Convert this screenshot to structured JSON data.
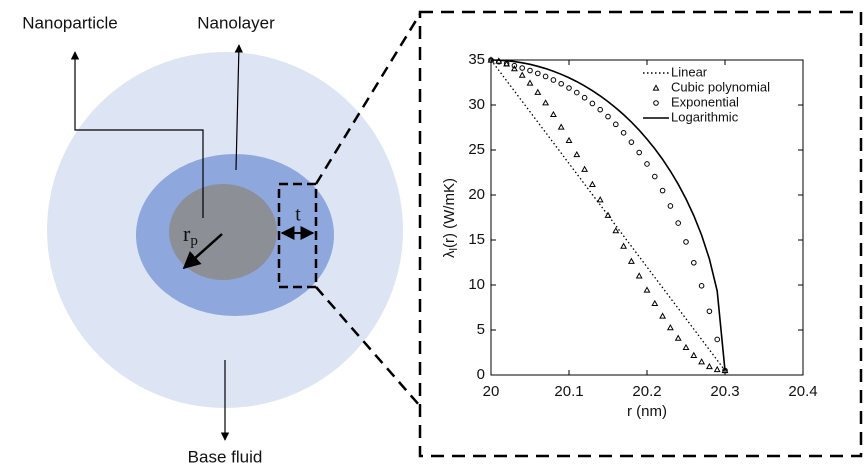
{
  "diagram": {
    "labels": {
      "nanoparticle": "Nanoparticle",
      "nanolayer": "Nanolayer",
      "base_fluid": "Base fluid",
      "radius": [
        "r",
        "p"
      ],
      "thickness": "t"
    }
  },
  "chart_data": {
    "type": "line",
    "ylabel": [
      "λ",
      "l",
      "(r) (W/mK)"
    ],
    "xlabel": "r (nm)",
    "x": [
      20,
      20.01,
      20.02,
      20.03,
      20.04,
      20.05,
      20.06,
      20.07,
      20.08,
      20.09,
      20.1,
      20.11,
      20.12,
      20.13,
      20.14,
      20.15,
      20.16,
      20.17,
      20.18,
      20.19,
      20.2,
      20.21,
      20.22,
      20.23,
      20.24,
      20.25,
      20.26,
      20.27,
      20.28,
      20.29,
      20.3
    ],
    "series": [
      {
        "name": "Linear",
        "color": "#000000",
        "style": "dotted",
        "values": [
          35,
          33.85,
          32.7,
          31.55,
          30.4,
          29.25,
          28.1,
          26.95,
          25.8,
          24.65,
          23.5,
          22.35,
          21.2,
          20.05,
          18.9,
          17.75,
          16.6,
          15.45,
          14.3,
          13.15,
          12,
          10.85,
          9.7,
          8.55,
          7.4,
          6.25,
          5.1,
          3.95,
          2.8,
          1.65,
          0.5
        ]
      },
      {
        "name": "Cubic polynomial",
        "color": "#000000",
        "style": "triangle",
        "values": [
          35,
          34.89,
          34.56,
          34.03,
          33.32,
          32.44,
          31.41,
          30.24,
          28.95,
          27.55,
          26.06,
          24.49,
          22.86,
          21.18,
          19.47,
          17.75,
          16.03,
          14.32,
          12.64,
          11.01,
          9.44,
          7.95,
          6.55,
          5.26,
          4.09,
          3.06,
          2.18,
          1.47,
          0.94,
          0.61,
          0.5
        ]
      },
      {
        "name": "Exponential",
        "color": "#000000",
        "style": "circle",
        "values": [
          35,
          34.81,
          34.6,
          34.37,
          34.11,
          33.83,
          33.51,
          33.17,
          32.78,
          32.36,
          31.89,
          31.38,
          30.81,
          30.17,
          29.48,
          28.71,
          27.85,
          26.91,
          25.87,
          24.72,
          23.45,
          22.05,
          20.49,
          18.78,
          16.88,
          14.79,
          12.47,
          9.91,
          7.08,
          3.95,
          0.5
        ]
      },
      {
        "name": "Logarithmic",
        "color": "#000000",
        "style": "solid",
        "values": [
          35,
          34.98,
          34.92,
          34.83,
          34.69,
          34.52,
          34.3,
          34.05,
          33.75,
          33.41,
          33.03,
          32.6,
          32.12,
          31.59,
          31.01,
          30.38,
          29.68,
          28.93,
          28.1,
          27.2,
          26.21,
          25.14,
          23.96,
          22.65,
          21.2,
          19.57,
          17.71,
          15.54,
          12.89,
          9.33,
          0.5
        ]
      }
    ],
    "xlim": [
      20,
      20.4
    ],
    "xticks": [
      20,
      20.1,
      20.2,
      20.3,
      20.4
    ],
    "ylim": [
      0,
      35
    ],
    "yticks": [
      0,
      5,
      10,
      15,
      20,
      25,
      30,
      35
    ],
    "legend": "upper right",
    "grid": false
  }
}
